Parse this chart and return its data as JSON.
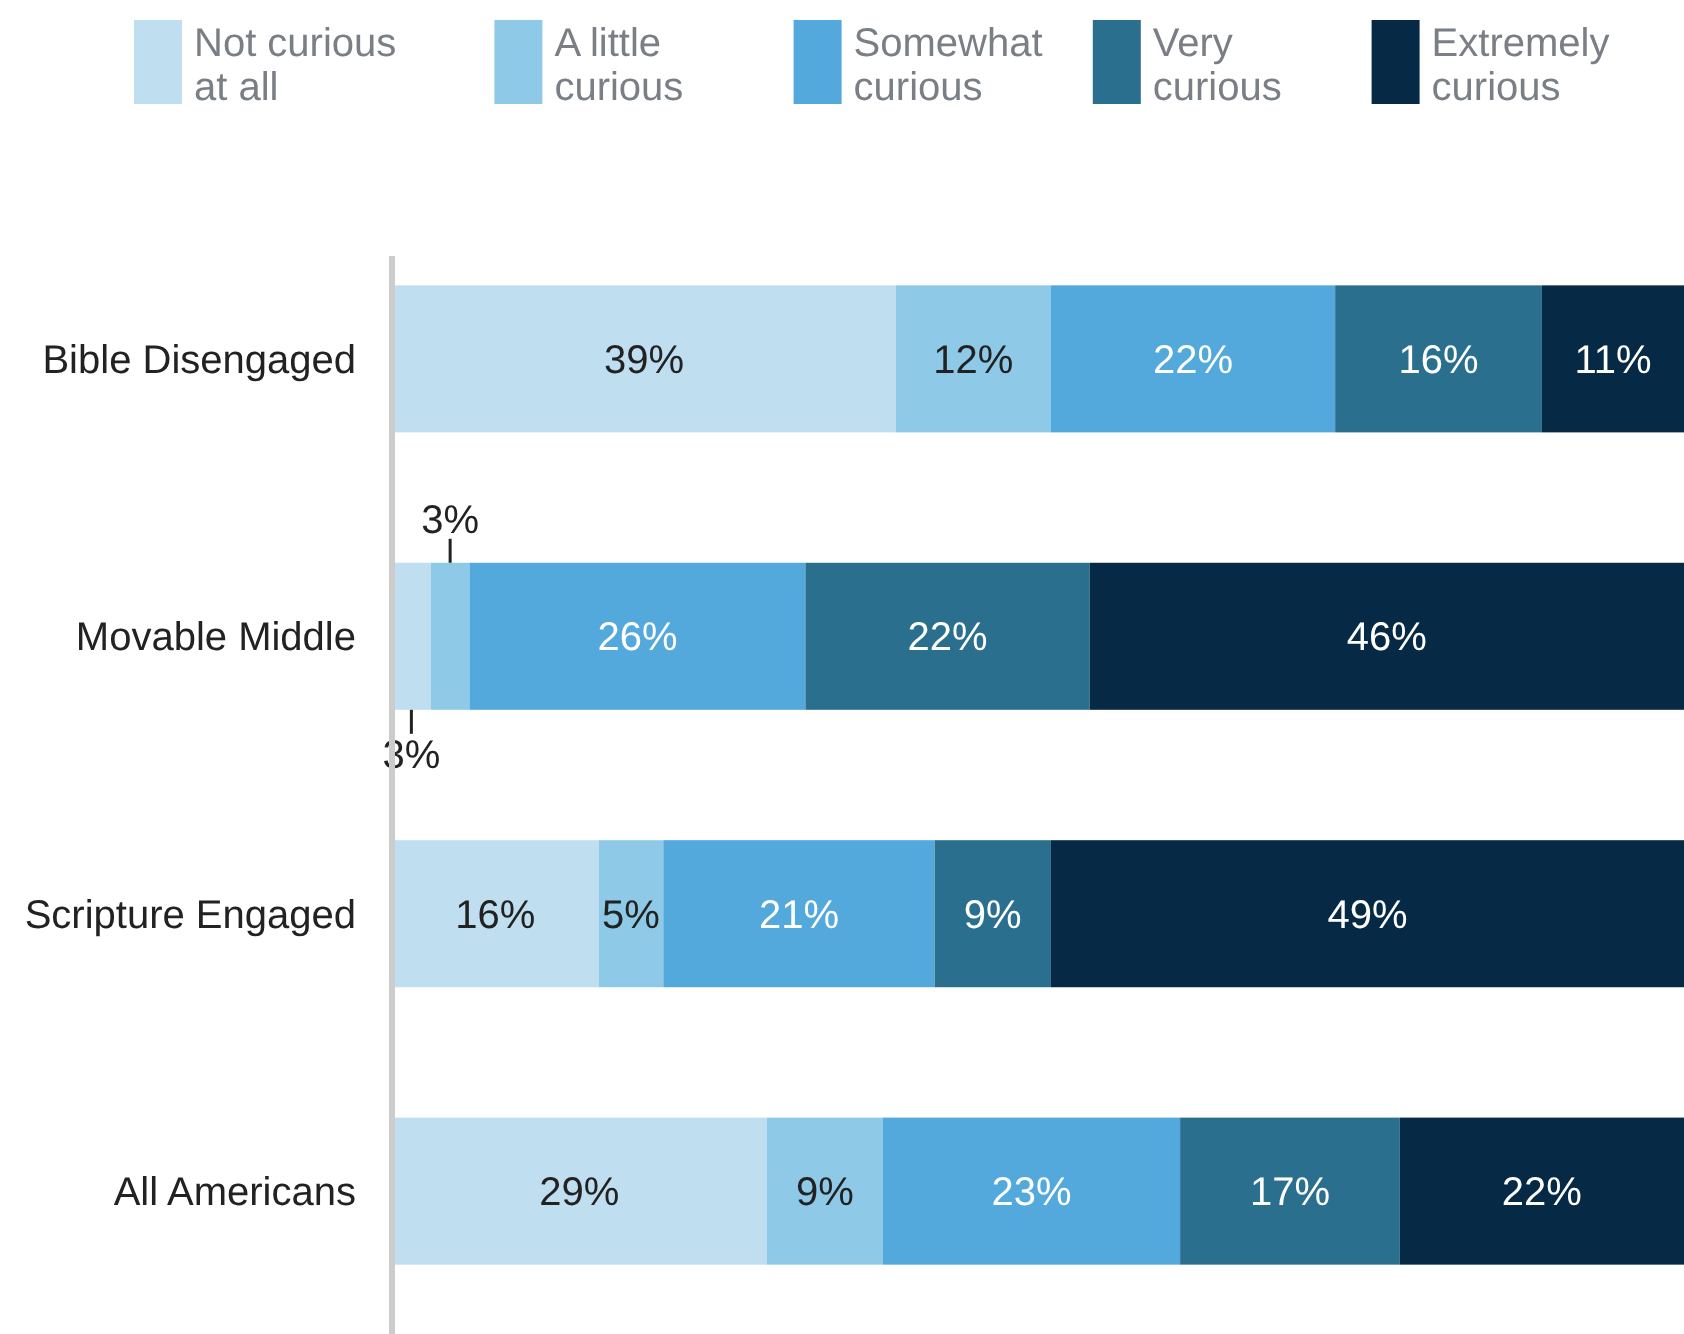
{
  "chart_data": {
    "type": "bar",
    "orientation": "horizontal",
    "stacked": true,
    "categories": [
      "Bible Disengaged",
      "Movable Middle",
      "Scripture Engaged",
      "All Americans"
    ],
    "series": [
      {
        "name": "Not curious at all",
        "color": "#bfdff0",
        "values": [
          39,
          3,
          16,
          29
        ],
        "value_labels": [
          "39%",
          "3%",
          "16%",
          "29%"
        ]
      },
      {
        "name": "A little curious",
        "color": "#8ecae8",
        "values": [
          12,
          3,
          5,
          9
        ],
        "value_labels": [
          "12%",
          "3%",
          "5%",
          "9%"
        ]
      },
      {
        "name": "Somewhat curious",
        "color": "#53a8dc",
        "values": [
          22,
          26,
          21,
          23
        ],
        "value_labels": [
          "22%",
          "26%",
          "21%",
          "23%"
        ]
      },
      {
        "name": "Very curious",
        "color": "#2a6f8e",
        "values": [
          16,
          22,
          9,
          17
        ],
        "value_labels": [
          "16%",
          "22%",
          "9%",
          "17%"
        ]
      },
      {
        "name": "Extremely curious",
        "color": "#062a45",
        "values": [
          11,
          46,
          49,
          22
        ],
        "value_labels": [
          "11%",
          "46%",
          "49%",
          "22%"
        ]
      }
    ],
    "tick_labels": "y",
    "legend": "top"
  }
}
